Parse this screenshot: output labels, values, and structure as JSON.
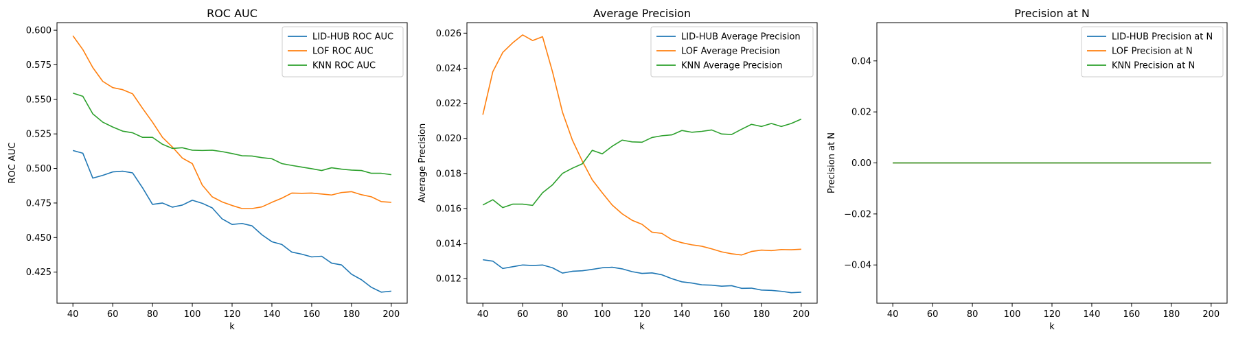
{
  "chart_data": [
    {
      "type": "line",
      "title": "ROC AUC",
      "xlabel": "k",
      "ylabel": "ROC AUC",
      "xlim": [
        32,
        208
      ],
      "ylim": [
        0.4025,
        0.6055
      ],
      "xticks": [
        40,
        60,
        80,
        100,
        120,
        140,
        160,
        180,
        200
      ],
      "xtick_labels": [
        "40",
        "60",
        "80",
        "100",
        "120",
        "140",
        "160",
        "180",
        "200"
      ],
      "yticks": [
        0.425,
        0.45,
        0.475,
        0.5,
        0.525,
        0.55,
        0.575,
        0.6
      ],
      "ytick_labels": [
        "0.425",
        "0.450",
        "0.475",
        "0.500",
        "0.525",
        "0.550",
        "0.575",
        "0.600"
      ],
      "legend_position": "top-right",
      "grid": false,
      "x": [
        40,
        45,
        50,
        55,
        60,
        65,
        70,
        75,
        80,
        85,
        90,
        95,
        100,
        105,
        110,
        115,
        120,
        125,
        130,
        135,
        140,
        145,
        150,
        155,
        160,
        165,
        170,
        175,
        180,
        185,
        190,
        195,
        200
      ],
      "series": [
        {
          "name": "LID-HUB ROC AUC",
          "color": "#1f77b4",
          "values": [
            0.513,
            0.511,
            0.493,
            0.495,
            0.4975,
            0.498,
            0.4968,
            0.486,
            0.474,
            0.475,
            0.472,
            0.4735,
            0.477,
            0.4748,
            0.4715,
            0.4635,
            0.4595,
            0.4602,
            0.4585,
            0.452,
            0.447,
            0.445,
            0.4395,
            0.438,
            0.436,
            0.4365,
            0.4315,
            0.4302,
            0.4235,
            0.4195,
            0.414,
            0.4105,
            0.4112
          ]
        },
        {
          "name": "LOF ROC AUC",
          "color": "#ff7f0e",
          "values": [
            0.596,
            0.586,
            0.573,
            0.563,
            0.5585,
            0.557,
            0.554,
            0.5435,
            0.5335,
            0.5225,
            0.5155,
            0.5075,
            0.5035,
            0.488,
            0.4795,
            0.4758,
            0.4732,
            0.471,
            0.471,
            0.4722,
            0.4755,
            0.4785,
            0.4822,
            0.482,
            0.4822,
            0.4815,
            0.4808,
            0.4826,
            0.4832,
            0.481,
            0.4795,
            0.476,
            0.4755
          ]
        },
        {
          "name": "KNN ROC AUC",
          "color": "#2ca02c",
          "values": [
            0.5545,
            0.5522,
            0.5395,
            0.5335,
            0.53,
            0.527,
            0.5258,
            0.5225,
            0.5225,
            0.5175,
            0.5145,
            0.515,
            0.5132,
            0.513,
            0.5132,
            0.5122,
            0.5108,
            0.5092,
            0.509,
            0.5078,
            0.507,
            0.5035,
            0.5022,
            0.501,
            0.4998,
            0.4985,
            0.5005,
            0.4995,
            0.4988,
            0.4985,
            0.4965,
            0.4965,
            0.4955
          ]
        }
      ]
    },
    {
      "type": "line",
      "title": "Average Precision",
      "xlabel": "k",
      "ylabel": "Average Precision",
      "xlim": [
        32,
        208
      ],
      "ylim": [
        0.0106,
        0.0266
      ],
      "xticks": [
        40,
        60,
        80,
        100,
        120,
        140,
        160,
        180,
        200
      ],
      "xtick_labels": [
        "40",
        "60",
        "80",
        "100",
        "120",
        "140",
        "160",
        "180",
        "200"
      ],
      "yticks": [
        0.012,
        0.014,
        0.016,
        0.018,
        0.02,
        0.022,
        0.024,
        0.026
      ],
      "ytick_labels": [
        "0.012",
        "0.014",
        "0.016",
        "0.018",
        "0.020",
        "0.022",
        "0.024",
        "0.026"
      ],
      "legend_position": "top-right",
      "grid": false,
      "x": [
        40,
        45,
        50,
        55,
        60,
        65,
        70,
        75,
        80,
        85,
        90,
        95,
        100,
        105,
        110,
        115,
        120,
        125,
        130,
        135,
        140,
        145,
        150,
        155,
        160,
        165,
        170,
        175,
        180,
        185,
        190,
        195,
        200
      ],
      "series": [
        {
          "name": "LID-HUB Average Precision",
          "color": "#1f77b4",
          "values": [
            0.01308,
            0.013,
            0.01258,
            0.01268,
            0.01278,
            0.01275,
            0.01278,
            0.01262,
            0.01232,
            0.01242,
            0.01245,
            0.01253,
            0.01262,
            0.01265,
            0.01256,
            0.0124,
            0.0123,
            0.01233,
            0.01222,
            0.012,
            0.01182,
            0.01175,
            0.01165,
            0.01163,
            0.01157,
            0.0116,
            0.01145,
            0.01146,
            0.01135,
            0.01133,
            0.01128,
            0.0112,
            0.01123
          ]
        },
        {
          "name": "LOF Average Precision",
          "color": "#ff7f0e",
          "values": [
            0.02135,
            0.0238,
            0.0249,
            0.02545,
            0.0259,
            0.02558,
            0.0258,
            0.0238,
            0.0215,
            0.0199,
            0.0187,
            0.01763,
            0.0169,
            0.0162,
            0.0157,
            0.01533,
            0.0151,
            0.01465,
            0.01458,
            0.01422,
            0.01405,
            0.01393,
            0.01385,
            0.0137,
            0.01353,
            0.01342,
            0.01335,
            0.01355,
            0.01363,
            0.0136,
            0.01366,
            0.01365,
            0.01368
          ]
        },
        {
          "name": "KNN Average Precision",
          "color": "#2ca02c",
          "values": [
            0.0162,
            0.0165,
            0.01605,
            0.01625,
            0.01625,
            0.01618,
            0.0169,
            0.01735,
            0.018,
            0.0183,
            0.01855,
            0.01932,
            0.01912,
            0.01955,
            0.0199,
            0.0198,
            0.01978,
            0.02005,
            0.02015,
            0.0202,
            0.02045,
            0.02035,
            0.0204,
            0.02048,
            0.02025,
            0.02022,
            0.02052,
            0.0208,
            0.02068,
            0.02085,
            0.02068,
            0.02085,
            0.0211
          ]
        }
      ]
    },
    {
      "type": "line",
      "title": "Precision at N",
      "xlabel": "k",
      "ylabel": "Precision at N",
      "xlim": [
        32,
        208
      ],
      "ylim": [
        -0.055,
        0.055
      ],
      "xticks": [
        40,
        60,
        80,
        100,
        120,
        140,
        160,
        180,
        200
      ],
      "xtick_labels": [
        "40",
        "60",
        "80",
        "100",
        "120",
        "140",
        "160",
        "180",
        "200"
      ],
      "yticks": [
        -0.04,
        -0.02,
        0.0,
        0.02,
        0.04
      ],
      "ytick_labels": [
        "−0.04",
        "−0.02",
        "0.00",
        "0.02",
        "0.04"
      ],
      "legend_position": "top-right",
      "grid": false,
      "x": [
        40,
        45,
        50,
        55,
        60,
        65,
        70,
        75,
        80,
        85,
        90,
        95,
        100,
        105,
        110,
        115,
        120,
        125,
        130,
        135,
        140,
        145,
        150,
        155,
        160,
        165,
        170,
        175,
        180,
        185,
        190,
        195,
        200
      ],
      "series": [
        {
          "name": "LID-HUB Precision at N",
          "color": "#1f77b4",
          "values": [
            0,
            0,
            0,
            0,
            0,
            0,
            0,
            0,
            0,
            0,
            0,
            0,
            0,
            0,
            0,
            0,
            0,
            0,
            0,
            0,
            0,
            0,
            0,
            0,
            0,
            0,
            0,
            0,
            0,
            0,
            0,
            0,
            0
          ]
        },
        {
          "name": "LOF Precision at N",
          "color": "#ff7f0e",
          "values": [
            0,
            0,
            0,
            0,
            0,
            0,
            0,
            0,
            0,
            0,
            0,
            0,
            0,
            0,
            0,
            0,
            0,
            0,
            0,
            0,
            0,
            0,
            0,
            0,
            0,
            0,
            0,
            0,
            0,
            0,
            0,
            0,
            0
          ]
        },
        {
          "name": "KNN Precision at N",
          "color": "#2ca02c",
          "values": [
            0,
            0,
            0,
            0,
            0,
            0,
            0,
            0,
            0,
            0,
            0,
            0,
            0,
            0,
            0,
            0,
            0,
            0,
            0,
            0,
            0,
            0,
            0,
            0,
            0,
            0,
            0,
            0,
            0,
            0,
            0,
            0,
            0
          ]
        }
      ]
    }
  ]
}
